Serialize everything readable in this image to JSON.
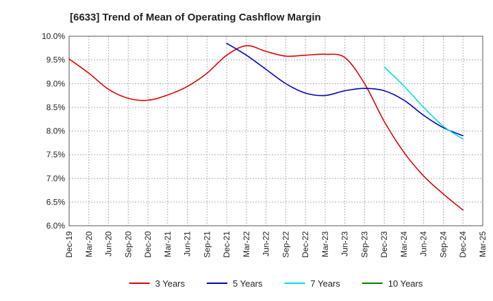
{
  "chart_data": {
    "type": "line",
    "title": "[6633]  Trend of Mean of Operating Cashflow Margin",
    "xlabel": "",
    "ylabel": "",
    "x_ticks": [
      "Dec-19",
      "Mar-20",
      "Jun-20",
      "Sep-20",
      "Dec-20",
      "Mar-21",
      "Jun-21",
      "Sep-21",
      "Dec-21",
      "Mar-22",
      "Jun-22",
      "Sep-22",
      "Dec-22",
      "Mar-23",
      "Jun-23",
      "Sep-23",
      "Dec-23",
      "Mar-24",
      "Jun-24",
      "Sep-24",
      "Dec-24",
      "Mar-25"
    ],
    "y_ticks": [
      "6.0%",
      "6.5%",
      "7.0%",
      "7.5%",
      "8.0%",
      "8.5%",
      "9.0%",
      "9.5%",
      "10.0%"
    ],
    "ylim": [
      6.0,
      10.0
    ],
    "grid": true,
    "legend_position": "bottom",
    "series": [
      {
        "name": "3 Years",
        "color": "#e00000",
        "x": [
          "Dec-19",
          "Mar-20",
          "Jun-20",
          "Sep-20",
          "Dec-20",
          "Mar-21",
          "Jun-21",
          "Sep-21",
          "Dec-21",
          "Mar-22",
          "Jun-22",
          "Sep-22",
          "Dec-22",
          "Mar-23",
          "Jun-23",
          "Sep-23",
          "Dec-23",
          "Mar-24",
          "Jun-24",
          "Sep-24",
          "Dec-24"
        ],
        "values": [
          9.52,
          9.22,
          8.88,
          8.69,
          8.65,
          8.76,
          8.94,
          9.22,
          9.6,
          9.8,
          9.68,
          9.58,
          9.6,
          9.62,
          9.55,
          9.0,
          8.2,
          7.55,
          7.05,
          6.67,
          6.33
        ]
      },
      {
        "name": "5 Years",
        "color": "#0000c0",
        "x": [
          "Dec-21",
          "Mar-22",
          "Jun-22",
          "Sep-22",
          "Dec-22",
          "Mar-23",
          "Jun-23",
          "Sep-23",
          "Dec-23",
          "Mar-24",
          "Jun-24",
          "Sep-24",
          "Dec-24"
        ],
        "values": [
          9.85,
          9.6,
          9.3,
          9.0,
          8.8,
          8.75,
          8.85,
          8.9,
          8.85,
          8.65,
          8.33,
          8.07,
          7.9
        ]
      },
      {
        "name": "7 Years",
        "color": "#00e0e0",
        "x": [
          "Dec-23",
          "Mar-24",
          "Jun-24",
          "Sep-24",
          "Dec-24"
        ],
        "values": [
          9.35,
          8.95,
          8.5,
          8.1,
          7.83
        ]
      },
      {
        "name": "10 Years",
        "color": "#008000",
        "x": [],
        "values": []
      }
    ]
  }
}
